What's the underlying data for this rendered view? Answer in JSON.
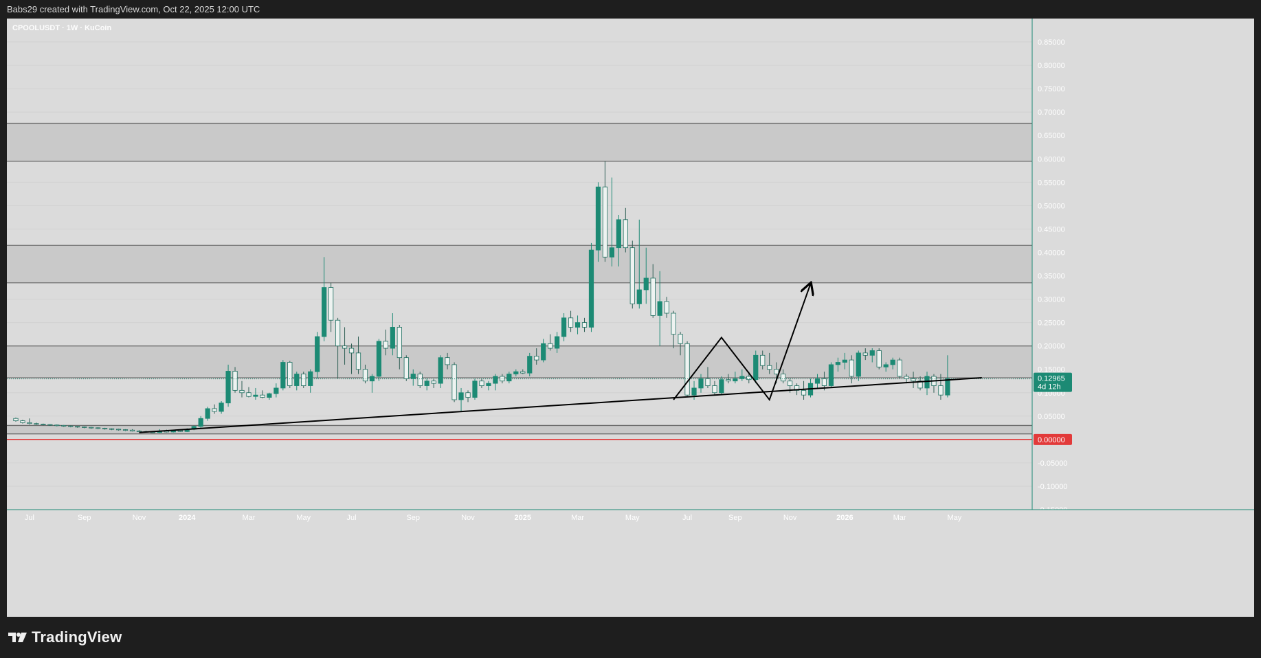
{
  "header": {
    "attribution": "Babs29 created with TradingView.com, Oct 22, 2025 12:00 UTC"
  },
  "footer": {
    "brand": "TradingView"
  },
  "colors": {
    "up": "#1c8a74",
    "down_fill": "#eef3f1",
    "down_stroke": "#1c6e5f",
    "zone_fill": "#c9c9c9",
    "zone_line": "#6e6e6e",
    "trendline": "#000000",
    "zero_line": "#e23a3a",
    "axis_text": "#ffffff",
    "price_tag": "#1c8a74",
    "zero_tag": "#e23a3a"
  },
  "chart_data": {
    "type": "candlestick",
    "title": "CPOOLUSDT · 1W · KuCoin",
    "interval": "1W",
    "exchange": "KuCoin",
    "last_price": "0.12965",
    "countdown": "4d 12h",
    "zero_label": "0.00000",
    "ylim": [
      -0.15,
      0.9
    ],
    "y_ticks": [
      "0.85000",
      "0.80000",
      "0.75000",
      "0.70000",
      "0.65000",
      "0.60000",
      "0.55000",
      "0.50000",
      "0.45000",
      "0.40000",
      "0.35000",
      "0.30000",
      "0.25000",
      "0.20000",
      "0.15000",
      "0.10000",
      "0.05000",
      "-0.05000",
      "-0.10000",
      "-0.15000"
    ],
    "x_ticks": [
      {
        "label": "Jul",
        "week": 2
      },
      {
        "label": "Sep",
        "week": 10
      },
      {
        "label": "Nov",
        "week": 18
      },
      {
        "label": "2024",
        "week": 25
      },
      {
        "label": "Mar",
        "week": 34
      },
      {
        "label": "May",
        "week": 42
      },
      {
        "label": "Jul",
        "week": 49
      },
      {
        "label": "Sep",
        "week": 58
      },
      {
        "label": "Nov",
        "week": 66
      },
      {
        "label": "2025",
        "week": 74
      },
      {
        "label": "Mar",
        "week": 82
      },
      {
        "label": "May",
        "week": 90
      },
      {
        "label": "Jul",
        "week": 98
      },
      {
        "label": "Sep",
        "week": 105
      },
      {
        "label": "Nov",
        "week": 113
      },
      {
        "label": "2026",
        "week": 121
      },
      {
        "label": "Mar",
        "week": 129
      },
      {
        "label": "May",
        "week": 137
      }
    ],
    "zones": [
      {
        "low": 0.595,
        "high": 0.676
      },
      {
        "low": 0.335,
        "high": 0.415
      },
      {
        "low": 0.132,
        "high": 0.2
      },
      {
        "low": 0.012,
        "high": 0.03
      }
    ],
    "trendline": {
      "from": {
        "week": 18,
        "price": 0.015
      },
      "to": {
        "week": 141,
        "price": 0.132
      }
    },
    "projection": [
      {
        "week": 96,
        "price": 0.085
      },
      {
        "week": 103,
        "price": 0.218
      },
      {
        "week": 110,
        "price": 0.085
      },
      {
        "week": 116,
        "price": 0.333
      }
    ],
    "candles": [
      {
        "o": 0.045,
        "h": 0.047,
        "l": 0.038,
        "c": 0.04
      },
      {
        "o": 0.04,
        "h": 0.042,
        "l": 0.034,
        "c": 0.036
      },
      {
        "o": 0.036,
        "h": 0.045,
        "l": 0.032,
        "c": 0.034
      },
      {
        "o": 0.034,
        "h": 0.036,
        "l": 0.031,
        "c": 0.033
      },
      {
        "o": 0.033,
        "h": 0.034,
        "l": 0.03,
        "c": 0.032
      },
      {
        "o": 0.032,
        "h": 0.033,
        "l": 0.029,
        "c": 0.031
      },
      {
        "o": 0.031,
        "h": 0.032,
        "l": 0.028,
        "c": 0.03
      },
      {
        "o": 0.03,
        "h": 0.031,
        "l": 0.027,
        "c": 0.029
      },
      {
        "o": 0.029,
        "h": 0.03,
        "l": 0.026,
        "c": 0.028
      },
      {
        "o": 0.028,
        "h": 0.029,
        "l": 0.025,
        "c": 0.027
      },
      {
        "o": 0.027,
        "h": 0.028,
        "l": 0.024,
        "c": 0.026
      },
      {
        "o": 0.026,
        "h": 0.027,
        "l": 0.023,
        "c": 0.025
      },
      {
        "o": 0.025,
        "h": 0.026,
        "l": 0.022,
        "c": 0.024
      },
      {
        "o": 0.024,
        "h": 0.025,
        "l": 0.021,
        "c": 0.023
      },
      {
        "o": 0.023,
        "h": 0.024,
        "l": 0.02,
        "c": 0.022
      },
      {
        "o": 0.022,
        "h": 0.023,
        "l": 0.019,
        "c": 0.021
      },
      {
        "o": 0.021,
        "h": 0.022,
        "l": 0.018,
        "c": 0.02
      },
      {
        "o": 0.02,
        "h": 0.022,
        "l": 0.017,
        "c": 0.018
      },
      {
        "o": 0.018,
        "h": 0.02,
        "l": 0.016,
        "c": 0.017
      },
      {
        "o": 0.017,
        "h": 0.019,
        "l": 0.015,
        "c": 0.016
      },
      {
        "o": 0.016,
        "h": 0.018,
        "l": 0.014,
        "c": 0.015
      },
      {
        "o": 0.015,
        "h": 0.022,
        "l": 0.014,
        "c": 0.018
      },
      {
        "o": 0.018,
        "h": 0.021,
        "l": 0.015,
        "c": 0.016
      },
      {
        "o": 0.016,
        "h": 0.02,
        "l": 0.015,
        "c": 0.019
      },
      {
        "o": 0.019,
        "h": 0.021,
        "l": 0.016,
        "c": 0.017
      },
      {
        "o": 0.017,
        "h": 0.024,
        "l": 0.016,
        "c": 0.022
      },
      {
        "o": 0.022,
        "h": 0.03,
        "l": 0.02,
        "c": 0.028
      },
      {
        "o": 0.028,
        "h": 0.05,
        "l": 0.025,
        "c": 0.045
      },
      {
        "o": 0.045,
        "h": 0.07,
        "l": 0.04,
        "c": 0.066
      },
      {
        "o": 0.066,
        "h": 0.075,
        "l": 0.055,
        "c": 0.06
      },
      {
        "o": 0.06,
        "h": 0.082,
        "l": 0.055,
        "c": 0.078
      },
      {
        "o": 0.078,
        "h": 0.16,
        "l": 0.07,
        "c": 0.146
      },
      {
        "o": 0.146,
        "h": 0.155,
        "l": 0.1,
        "c": 0.105
      },
      {
        "o": 0.105,
        "h": 0.125,
        "l": 0.09,
        "c": 0.1
      },
      {
        "o": 0.1,
        "h": 0.112,
        "l": 0.09,
        "c": 0.092
      },
      {
        "o": 0.092,
        "h": 0.11,
        "l": 0.085,
        "c": 0.095
      },
      {
        "o": 0.095,
        "h": 0.105,
        "l": 0.088,
        "c": 0.09
      },
      {
        "o": 0.09,
        "h": 0.1,
        "l": 0.085,
        "c": 0.098
      },
      {
        "o": 0.098,
        "h": 0.12,
        "l": 0.09,
        "c": 0.11
      },
      {
        "o": 0.11,
        "h": 0.17,
        "l": 0.105,
        "c": 0.165
      },
      {
        "o": 0.165,
        "h": 0.168,
        "l": 0.11,
        "c": 0.115
      },
      {
        "o": 0.115,
        "h": 0.145,
        "l": 0.105,
        "c": 0.14
      },
      {
        "o": 0.14,
        "h": 0.145,
        "l": 0.11,
        "c": 0.115
      },
      {
        "o": 0.115,
        "h": 0.15,
        "l": 0.1,
        "c": 0.145
      },
      {
        "o": 0.145,
        "h": 0.23,
        "l": 0.13,
        "c": 0.22
      },
      {
        "o": 0.22,
        "h": 0.39,
        "l": 0.21,
        "c": 0.325
      },
      {
        "o": 0.325,
        "h": 0.335,
        "l": 0.23,
        "c": 0.255
      },
      {
        "o": 0.255,
        "h": 0.26,
        "l": 0.13,
        "c": 0.2
      },
      {
        "o": 0.2,
        "h": 0.24,
        "l": 0.16,
        "c": 0.195
      },
      {
        "o": 0.195,
        "h": 0.205,
        "l": 0.14,
        "c": 0.185
      },
      {
        "o": 0.185,
        "h": 0.22,
        "l": 0.14,
        "c": 0.15
      },
      {
        "o": 0.15,
        "h": 0.16,
        "l": 0.12,
        "c": 0.125
      },
      {
        "o": 0.125,
        "h": 0.14,
        "l": 0.1,
        "c": 0.135
      },
      {
        "o": 0.135,
        "h": 0.215,
        "l": 0.125,
        "c": 0.21
      },
      {
        "o": 0.21,
        "h": 0.235,
        "l": 0.18,
        "c": 0.195
      },
      {
        "o": 0.195,
        "h": 0.27,
        "l": 0.18,
        "c": 0.24
      },
      {
        "o": 0.24,
        "h": 0.245,
        "l": 0.15,
        "c": 0.175
      },
      {
        "o": 0.175,
        "h": 0.18,
        "l": 0.125,
        "c": 0.13
      },
      {
        "o": 0.13,
        "h": 0.15,
        "l": 0.115,
        "c": 0.14
      },
      {
        "o": 0.14,
        "h": 0.145,
        "l": 0.11,
        "c": 0.115
      },
      {
        "o": 0.115,
        "h": 0.13,
        "l": 0.105,
        "c": 0.125
      },
      {
        "o": 0.125,
        "h": 0.13,
        "l": 0.11,
        "c": 0.12
      },
      {
        "o": 0.12,
        "h": 0.18,
        "l": 0.11,
        "c": 0.175
      },
      {
        "o": 0.175,
        "h": 0.185,
        "l": 0.15,
        "c": 0.16
      },
      {
        "o": 0.16,
        "h": 0.165,
        "l": 0.08,
        "c": 0.085
      },
      {
        "o": 0.085,
        "h": 0.11,
        "l": 0.06,
        "c": 0.1
      },
      {
        "o": 0.1,
        "h": 0.105,
        "l": 0.08,
        "c": 0.09
      },
      {
        "o": 0.09,
        "h": 0.13,
        "l": 0.085,
        "c": 0.125
      },
      {
        "o": 0.125,
        "h": 0.13,
        "l": 0.11,
        "c": 0.115
      },
      {
        "o": 0.115,
        "h": 0.125,
        "l": 0.105,
        "c": 0.12
      },
      {
        "o": 0.12,
        "h": 0.14,
        "l": 0.105,
        "c": 0.135
      },
      {
        "o": 0.135,
        "h": 0.14,
        "l": 0.12,
        "c": 0.125
      },
      {
        "o": 0.125,
        "h": 0.145,
        "l": 0.12,
        "c": 0.14
      },
      {
        "o": 0.14,
        "h": 0.15,
        "l": 0.135,
        "c": 0.145
      },
      {
        "o": 0.145,
        "h": 0.15,
        "l": 0.14,
        "c": 0.142
      },
      {
        "o": 0.142,
        "h": 0.185,
        "l": 0.135,
        "c": 0.178
      },
      {
        "o": 0.178,
        "h": 0.195,
        "l": 0.16,
        "c": 0.17
      },
      {
        "o": 0.17,
        "h": 0.215,
        "l": 0.165,
        "c": 0.205
      },
      {
        "o": 0.205,
        "h": 0.225,
        "l": 0.19,
        "c": 0.195
      },
      {
        "o": 0.195,
        "h": 0.23,
        "l": 0.185,
        "c": 0.22
      },
      {
        "o": 0.22,
        "h": 0.27,
        "l": 0.21,
        "c": 0.26
      },
      {
        "o": 0.26,
        "h": 0.275,
        "l": 0.23,
        "c": 0.24
      },
      {
        "o": 0.24,
        "h": 0.265,
        "l": 0.225,
        "c": 0.25
      },
      {
        "o": 0.25,
        "h": 0.26,
        "l": 0.23,
        "c": 0.24
      },
      {
        "o": 0.24,
        "h": 0.42,
        "l": 0.23,
        "c": 0.405
      },
      {
        "o": 0.405,
        "h": 0.55,
        "l": 0.38,
        "c": 0.54
      },
      {
        "o": 0.54,
        "h": 0.595,
        "l": 0.38,
        "c": 0.39
      },
      {
        "o": 0.39,
        "h": 0.56,
        "l": 0.37,
        "c": 0.41
      },
      {
        "o": 0.41,
        "h": 0.48,
        "l": 0.37,
        "c": 0.47
      },
      {
        "o": 0.47,
        "h": 0.495,
        "l": 0.4,
        "c": 0.41
      },
      {
        "o": 0.41,
        "h": 0.425,
        "l": 0.28,
        "c": 0.29
      },
      {
        "o": 0.29,
        "h": 0.47,
        "l": 0.28,
        "c": 0.32
      },
      {
        "o": 0.32,
        "h": 0.41,
        "l": 0.29,
        "c": 0.345
      },
      {
        "o": 0.345,
        "h": 0.375,
        "l": 0.26,
        "c": 0.265
      },
      {
        "o": 0.265,
        "h": 0.36,
        "l": 0.2,
        "c": 0.295
      },
      {
        "o": 0.295,
        "h": 0.305,
        "l": 0.26,
        "c": 0.27
      },
      {
        "o": 0.27,
        "h": 0.275,
        "l": 0.195,
        "c": 0.225
      },
      {
        "o": 0.225,
        "h": 0.23,
        "l": 0.18,
        "c": 0.205
      },
      {
        "o": 0.205,
        "h": 0.21,
        "l": 0.09,
        "c": 0.095
      },
      {
        "o": 0.095,
        "h": 0.125,
        "l": 0.085,
        "c": 0.11
      },
      {
        "o": 0.11,
        "h": 0.14,
        "l": 0.1,
        "c": 0.13
      },
      {
        "o": 0.13,
        "h": 0.155,
        "l": 0.11,
        "c": 0.115
      },
      {
        "o": 0.115,
        "h": 0.125,
        "l": 0.095,
        "c": 0.1
      },
      {
        "o": 0.1,
        "h": 0.135,
        "l": 0.095,
        "c": 0.128
      },
      {
        "o": 0.128,
        "h": 0.14,
        "l": 0.12,
        "c": 0.125
      },
      {
        "o": 0.125,
        "h": 0.145,
        "l": 0.12,
        "c": 0.13
      },
      {
        "o": 0.13,
        "h": 0.15,
        "l": 0.125,
        "c": 0.135
      },
      {
        "o": 0.135,
        "h": 0.145,
        "l": 0.12,
        "c": 0.128
      },
      {
        "o": 0.128,
        "h": 0.19,
        "l": 0.12,
        "c": 0.18
      },
      {
        "o": 0.18,
        "h": 0.19,
        "l": 0.15,
        "c": 0.158
      },
      {
        "o": 0.158,
        "h": 0.185,
        "l": 0.14,
        "c": 0.15
      },
      {
        "o": 0.15,
        "h": 0.165,
        "l": 0.12,
        "c": 0.14
      },
      {
        "o": 0.14,
        "h": 0.15,
        "l": 0.12,
        "c": 0.125
      },
      {
        "o": 0.125,
        "h": 0.13,
        "l": 0.1,
        "c": 0.115
      },
      {
        "o": 0.115,
        "h": 0.12,
        "l": 0.095,
        "c": 0.105
      },
      {
        "o": 0.105,
        "h": 0.125,
        "l": 0.085,
        "c": 0.095
      },
      {
        "o": 0.095,
        "h": 0.13,
        "l": 0.09,
        "c": 0.12
      },
      {
        "o": 0.12,
        "h": 0.14,
        "l": 0.11,
        "c": 0.13
      },
      {
        "o": 0.13,
        "h": 0.145,
        "l": 0.105,
        "c": 0.115
      },
      {
        "o": 0.115,
        "h": 0.165,
        "l": 0.11,
        "c": 0.16
      },
      {
        "o": 0.16,
        "h": 0.175,
        "l": 0.145,
        "c": 0.165
      },
      {
        "o": 0.165,
        "h": 0.185,
        "l": 0.15,
        "c": 0.17
      },
      {
        "o": 0.17,
        "h": 0.18,
        "l": 0.12,
        "c": 0.135
      },
      {
        "o": 0.135,
        "h": 0.19,
        "l": 0.125,
        "c": 0.185
      },
      {
        "o": 0.185,
        "h": 0.195,
        "l": 0.17,
        "c": 0.18
      },
      {
        "o": 0.18,
        "h": 0.195,
        "l": 0.165,
        "c": 0.19
      },
      {
        "o": 0.19,
        "h": 0.195,
        "l": 0.15,
        "c": 0.155
      },
      {
        "o": 0.155,
        "h": 0.165,
        "l": 0.145,
        "c": 0.16
      },
      {
        "o": 0.16,
        "h": 0.175,
        "l": 0.15,
        "c": 0.17
      },
      {
        "o": 0.17,
        "h": 0.175,
        "l": 0.13,
        "c": 0.135
      },
      {
        "o": 0.135,
        "h": 0.14,
        "l": 0.12,
        "c": 0.13
      },
      {
        "o": 0.13,
        "h": 0.145,
        "l": 0.11,
        "c": 0.125
      },
      {
        "o": 0.125,
        "h": 0.135,
        "l": 0.105,
        "c": 0.11
      },
      {
        "o": 0.11,
        "h": 0.145,
        "l": 0.095,
        "c": 0.135
      },
      {
        "o": 0.135,
        "h": 0.14,
        "l": 0.1,
        "c": 0.115
      },
      {
        "o": 0.115,
        "h": 0.14,
        "l": 0.085,
        "c": 0.095
      },
      {
        "o": 0.095,
        "h": 0.18,
        "l": 0.09,
        "c": 0.13
      }
    ]
  }
}
